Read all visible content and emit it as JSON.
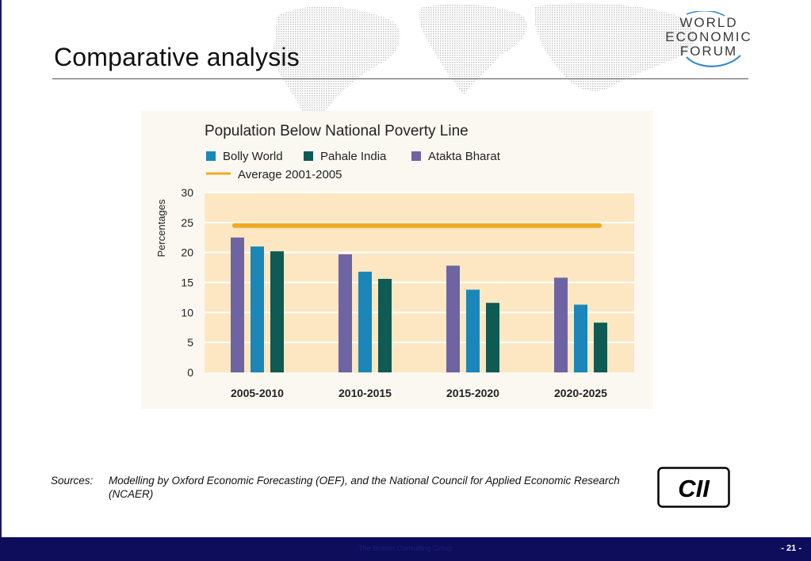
{
  "slide": {
    "title": "Comparative analysis",
    "sources_label": "Sources:",
    "sources_text": "Modelling by Oxford Economic Forecasting (OEF), and the National Council for Applied Economic Research (NCAER)",
    "footer_text": "The Boston Consulting Group",
    "page_number": "- 21 -"
  },
  "logos": {
    "wef_line1": "WORLD",
    "wef_line2": "ECONOMIC",
    "wef_line3": "FORUM",
    "cii": "CII"
  },
  "colors": {
    "bolly_world": "#1a87b8",
    "pahale_india": "#0f5a52",
    "atakta_bharat": "#6e64a3",
    "average_line": "#f2a921",
    "plot_background": "#fce7c2",
    "footer": "#0d0d5c"
  },
  "chart_data": {
    "type": "bar",
    "title": "Population Below National Poverty Line",
    "ylabel": "Percentages",
    "xlabel": "",
    "ylim": [
      0,
      30
    ],
    "yticks": [
      0,
      5,
      10,
      15,
      20,
      25,
      30
    ],
    "categories": [
      "2005-2010",
      "2010-2015",
      "2015-2020",
      "2020-2025"
    ],
    "series": [
      {
        "name": "Atakta Bharat",
        "color": "#6e64a3",
        "values": [
          22.5,
          19.7,
          17.8,
          15.8
        ]
      },
      {
        "name": "Bolly World",
        "color": "#1a87b8",
        "values": [
          21,
          16.8,
          13.8,
          11.3
        ]
      },
      {
        "name": "Pahale India",
        "color": "#0f5a52",
        "values": [
          20.2,
          15.6,
          11.6,
          8.3
        ]
      }
    ],
    "legend_order": [
      "Bolly World",
      "Pahale India",
      "Atakta Bharat"
    ],
    "average": {
      "name": "Average 2001-2005",
      "value": 24.5,
      "color": "#f2a921"
    },
    "grid": true,
    "legend_placement": "top-left"
  }
}
